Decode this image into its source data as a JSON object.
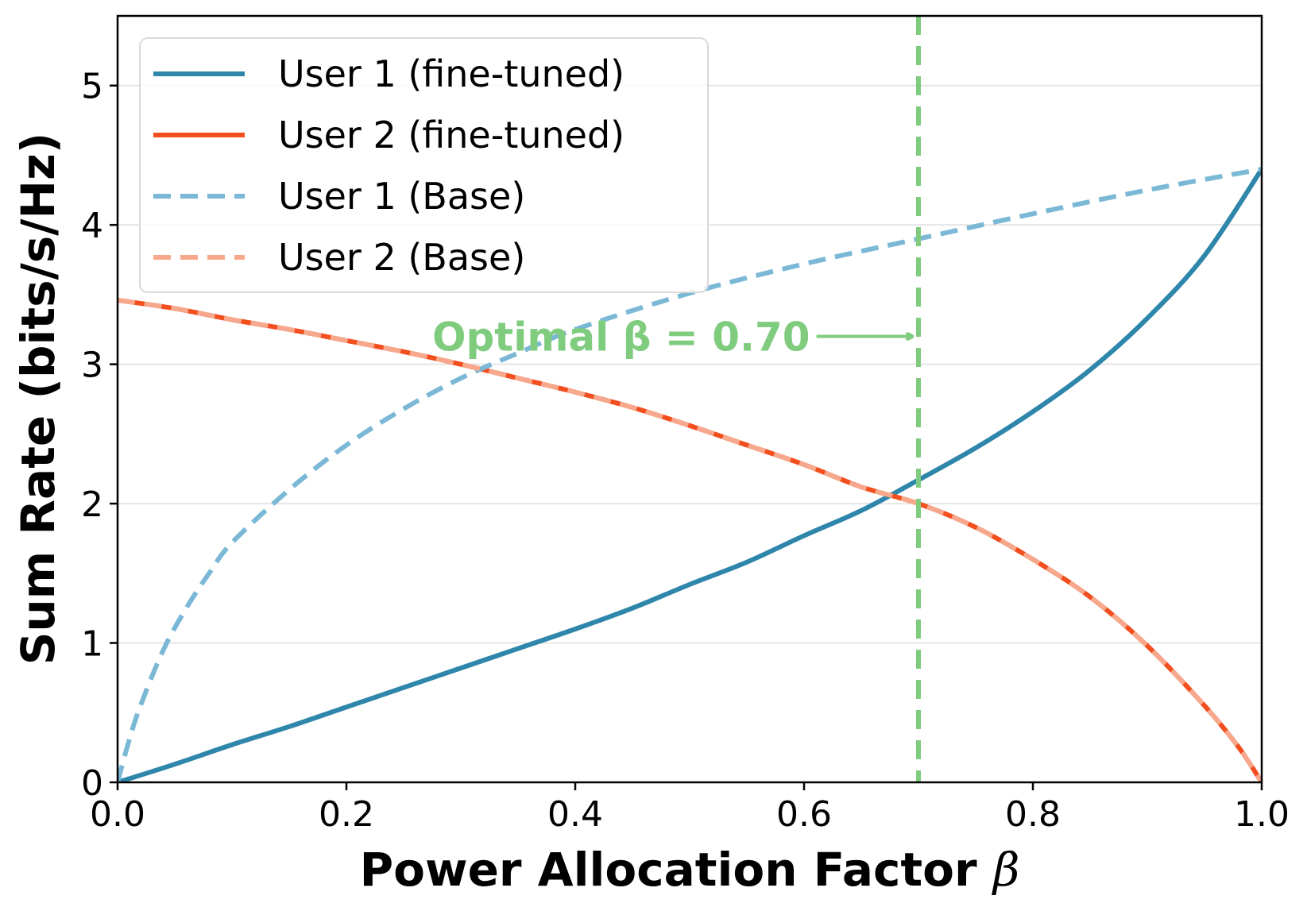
{
  "chart_data": {
    "type": "line",
    "xlabel": "Power Allocation Factor",
    "xlabel_symbol": "β",
    "ylabel": "Sum Rate (bits/s/Hz)",
    "xlim": [
      0.0,
      1.0
    ],
    "ylim": [
      0,
      5.5
    ],
    "xticks": [
      0.0,
      0.2,
      0.4,
      0.6,
      0.8,
      1.0
    ],
    "xtick_labels": [
      "0.0",
      "0.2",
      "0.4",
      "0.6",
      "0.8",
      "1.0"
    ],
    "yticks": [
      0,
      1,
      2,
      3,
      4,
      5
    ],
    "ytick_labels": [
      "0",
      "1",
      "2",
      "3",
      "4",
      "5"
    ],
    "grid": "horizontal",
    "legend_position": "upper-left",
    "series": [
      {
        "name": "User 1 (fine-tuned)",
        "color": "#2E86AB",
        "style": "solid",
        "x": [
          0.0,
          0.05,
          0.1,
          0.15,
          0.2,
          0.25,
          0.3,
          0.35,
          0.4,
          0.45,
          0.5,
          0.55,
          0.6,
          0.65,
          0.7,
          0.75,
          0.8,
          0.85,
          0.9,
          0.95,
          1.0
        ],
        "y": [
          0.0,
          0.13,
          0.27,
          0.4,
          0.54,
          0.68,
          0.82,
          0.96,
          1.1,
          1.25,
          1.42,
          1.58,
          1.77,
          1.95,
          2.17,
          2.4,
          2.66,
          2.96,
          3.33,
          3.78,
          4.4
        ]
      },
      {
        "name": "User 2 (fine-tuned)",
        "color": "#F24E1E",
        "style": "solid",
        "x": [
          0.0,
          0.05,
          0.1,
          0.15,
          0.2,
          0.25,
          0.3,
          0.35,
          0.4,
          0.45,
          0.5,
          0.55,
          0.6,
          0.65,
          0.7,
          0.75,
          0.8,
          0.85,
          0.9,
          0.95,
          0.98,
          1.0
        ],
        "y": [
          3.46,
          3.4,
          3.32,
          3.25,
          3.17,
          3.09,
          3.0,
          2.9,
          2.8,
          2.69,
          2.56,
          2.42,
          2.28,
          2.12,
          2.0,
          1.83,
          1.6,
          1.33,
          0.98,
          0.55,
          0.25,
          0.0
        ]
      },
      {
        "name": "User 1 (Base)",
        "color": "#7BB8D6",
        "style": "dashed",
        "x": [
          0.0,
          0.01,
          0.02,
          0.04,
          0.06,
          0.08,
          0.1,
          0.15,
          0.2,
          0.25,
          0.3,
          0.35,
          0.4,
          0.5,
          0.6,
          0.7,
          0.8,
          0.9,
          1.0
        ],
        "y": [
          0.0,
          0.3,
          0.55,
          0.95,
          1.25,
          1.5,
          1.72,
          2.1,
          2.42,
          2.68,
          2.9,
          3.08,
          3.25,
          3.51,
          3.72,
          3.9,
          4.08,
          4.25,
          4.4
        ]
      },
      {
        "name": "User 2 (Base)",
        "color": "#F7A88C",
        "style": "dashed",
        "x": [
          0.0,
          0.05,
          0.1,
          0.15,
          0.2,
          0.25,
          0.3,
          0.35,
          0.4,
          0.45,
          0.5,
          0.55,
          0.6,
          0.65,
          0.7,
          0.75,
          0.8,
          0.85,
          0.9,
          0.95,
          0.98,
          1.0
        ],
        "y": [
          3.46,
          3.4,
          3.32,
          3.25,
          3.17,
          3.09,
          3.0,
          2.9,
          2.8,
          2.69,
          2.56,
          2.42,
          2.28,
          2.12,
          2.0,
          1.83,
          1.6,
          1.33,
          0.98,
          0.55,
          0.25,
          0.0
        ]
      }
    ],
    "vline": {
      "x": 0.7,
      "color": "#7FCC7F",
      "style": "dashed"
    },
    "annotation": {
      "text": "Optimal β = 0.70",
      "x": 0.275,
      "y": 3.2,
      "arrow_to": [
        0.7,
        3.2
      ],
      "color": "#7FCC7F"
    },
    "grid_color": "#E5E5E5"
  }
}
